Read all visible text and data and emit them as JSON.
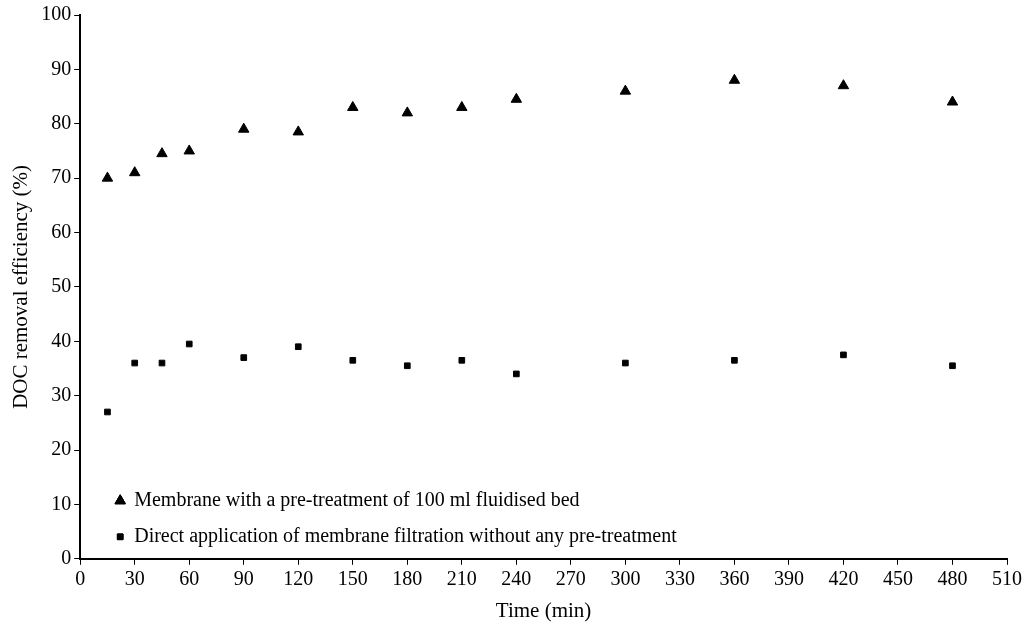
{
  "chart_data": {
    "type": "scatter",
    "xlabel": "Time (min)",
    "ylabel": "DOC removal efficiency (%)",
    "x": [
      15,
      30,
      45,
      60,
      90,
      120,
      150,
      180,
      210,
      240,
      300,
      360,
      420,
      480
    ],
    "series": [
      {
        "name": "Membrane with a pre-treatment of 100 ml fluidised bed",
        "color": "#000000",
        "marker": "triangle",
        "values": [
          70,
          71,
          74.5,
          75,
          79,
          78.5,
          83,
          82,
          83,
          84.5,
          86,
          88,
          87,
          84
        ]
      },
      {
        "name": "Direct application of membrane filtration without any pre-treatment",
        "color": "#000000",
        "marker": "square",
        "values": [
          27,
          36,
          36,
          39.5,
          37,
          39,
          36.5,
          35.5,
          36.5,
          34,
          36,
          36.5,
          37.5,
          35.5
        ]
      }
    ],
    "xlim": [
      0,
      510
    ],
    "xticks": [
      0,
      30,
      60,
      90,
      120,
      150,
      180,
      210,
      240,
      270,
      300,
      330,
      360,
      390,
      420,
      450,
      480,
      510
    ],
    "ylim": [
      0,
      100
    ],
    "yticks": [
      0,
      10,
      20,
      30,
      40,
      50,
      60,
      70,
      80,
      90,
      100
    ],
    "legend": "bottom left",
    "grid": false
  }
}
